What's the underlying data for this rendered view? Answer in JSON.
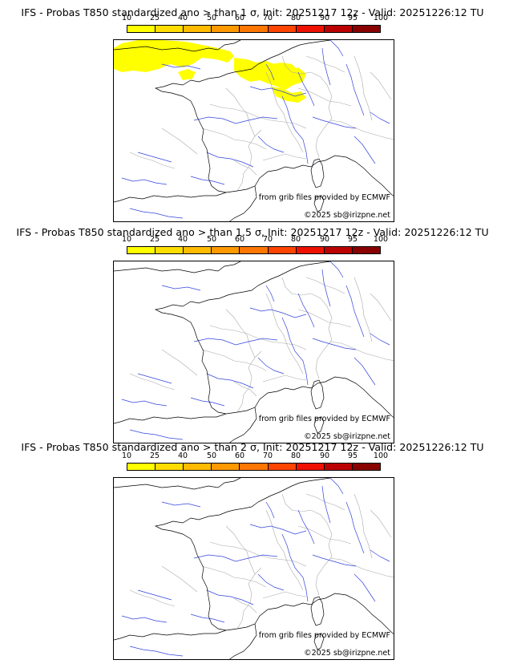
{
  "colorbar": {
    "ticks": [
      "10",
      "25",
      "40",
      "50",
      "60",
      "70",
      "80",
      "90",
      "95",
      "100"
    ],
    "colors": [
      "#ffff00",
      "#ffdd00",
      "#ffbb00",
      "#ff9900",
      "#ff7700",
      "#ff4400",
      "#ee1100",
      "#bb0000",
      "#880000"
    ]
  },
  "credits": {
    "source": "from grib files provided by ECMWF",
    "copyright": "©2025 sb@irizpne.net"
  },
  "panels": [
    {
      "title": "IFS - Probas T850  standardized ano > than 1 σ, Init: 20251217 12z - Valid: 20251226:12 TU",
      "yellow_area": true
    },
    {
      "title": "IFS - Probas T850  standardized ano > than 1.5 σ, Init: 20251217 12z - Valid: 20251226:12 TU",
      "yellow_area": false
    },
    {
      "title": "IFS - Probas T850  standardized ano > than 2 σ, Init: 20251217 12z - Valid: 20251226:12 TU",
      "yellow_area": false
    }
  ],
  "colors": {
    "coast": "#000000",
    "rivers": "#3344dd",
    "borders": "#aaaaaa",
    "probability_yellow": "#ffff00"
  }
}
